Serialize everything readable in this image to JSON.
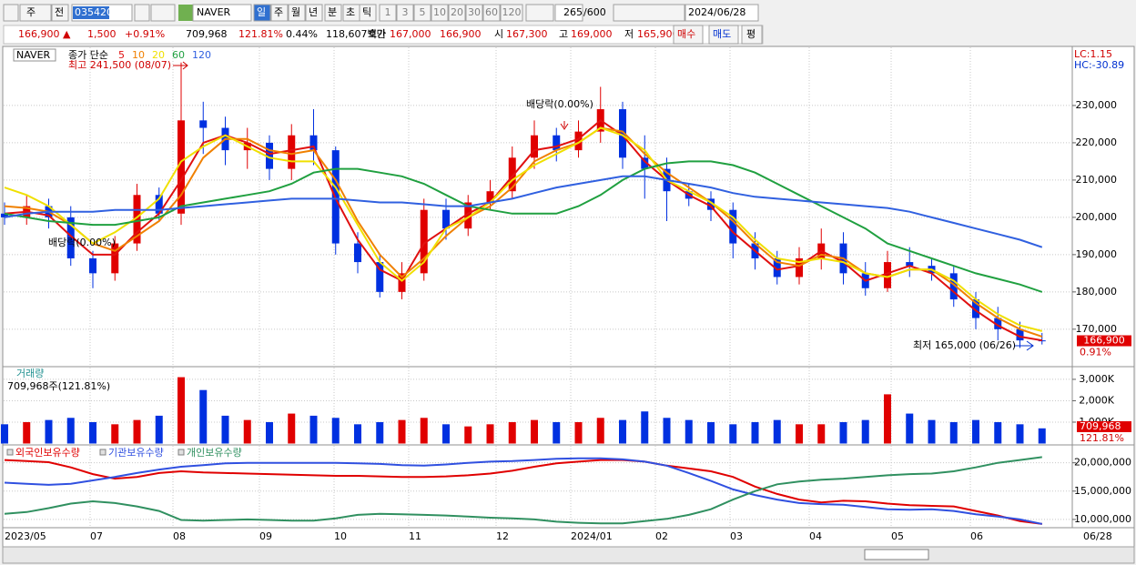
{
  "toolbar": {
    "period": "주",
    "compare": "전",
    "code": "035420",
    "name": "NAVER",
    "intervals": [
      "일",
      "주",
      "월",
      "년",
      "분",
      "초",
      "틱"
    ],
    "counts": [
      "1",
      "3",
      "5",
      "10",
      "20",
      "30",
      "60",
      "120"
    ],
    "bars": "265",
    "max_bars": "/600",
    "date": "2024/06/28"
  },
  "quote": {
    "price": "166,900 ▲",
    "change": "1,500",
    "rate": "+0.91%",
    "volume": "709,968",
    "volume_ratio": "121.81%",
    "turnover": "0.44%",
    "amount": "118,607백만",
    "bid_label": "호가",
    "ask": "167,000",
    "bid": "166,900",
    "open_label": "시",
    "open": "167,300",
    "high_label": "고",
    "high": "169,000",
    "low_label": "저",
    "low": "165,900",
    "buy": "매수",
    "sell": "매도",
    "eval": "평"
  },
  "chart_data": [
    {
      "type": "candlestick",
      "name": "NAVER",
      "ma_label": "종가 단순",
      "up_color": "#e00000",
      "down_color": "#0030e0",
      "x_labels": [
        "2023/05",
        "07",
        "08",
        "09",
        "10",
        "11",
        "12",
        "2024/01",
        "02",
        "03",
        "04",
        "05",
        "06",
        "06/28"
      ],
      "open": [
        201000,
        200000,
        203000,
        200000,
        189000,
        185000,
        193000,
        206000,
        201000,
        226000,
        224000,
        218000,
        220000,
        213000,
        222000,
        218000,
        193000,
        188000,
        180000,
        185000,
        202000,
        197000,
        204000,
        207000,
        216000,
        222000,
        218000,
        223000,
        229000,
        216000,
        213000,
        207000,
        205000,
        202000,
        193000,
        189000,
        184000,
        189000,
        193000,
        185000,
        181000,
        188000,
        187000,
        185000,
        178000,
        173000,
        170000,
        167000
      ],
      "high": [
        204000,
        206000,
        205000,
        203000,
        191000,
        195000,
        209000,
        208000,
        241500,
        231000,
        227000,
        224000,
        222000,
        225000,
        229000,
        219000,
        196000,
        190000,
        188000,
        205000,
        205000,
        206000,
        210000,
        219000,
        226000,
        224000,
        226000,
        235000,
        231000,
        222000,
        216000,
        209000,
        207000,
        204000,
        196000,
        191000,
        192000,
        197000,
        196000,
        188000,
        191000,
        192000,
        189000,
        187000,
        180000,
        176000,
        172000,
        169000
      ],
      "low": [
        198000,
        198000,
        197000,
        187000,
        181000,
        183000,
        191000,
        199000,
        198000,
        217000,
        214000,
        213000,
        210000,
        210000,
        214000,
        190000,
        185000,
        178500,
        178000,
        183000,
        194000,
        195000,
        202000,
        205000,
        213000,
        215000,
        216000,
        220000,
        213000,
        205000,
        199000,
        203000,
        199000,
        189000,
        186000,
        182000,
        182000,
        186000,
        182000,
        179000,
        180000,
        184000,
        183000,
        176000,
        170000,
        167000,
        165000,
        165900
      ],
      "close": [
        200000,
        203000,
        200000,
        189000,
        185000,
        193000,
        206000,
        201000,
        226000,
        224000,
        218000,
        220000,
        213000,
        222000,
        218000,
        193000,
        188000,
        180000,
        185000,
        202000,
        197000,
        204000,
        207000,
        216000,
        222000,
        218000,
        223000,
        229000,
        216000,
        213000,
        207000,
        205000,
        202000,
        193000,
        189000,
        184000,
        189000,
        193000,
        185000,
        181000,
        188000,
        187000,
        185000,
        178000,
        173000,
        170000,
        167000,
        166900
      ],
      "series": [
        {
          "name": "5",
          "color": "#e01010",
          "values": [
            201000,
            201500,
            200500,
            195000,
            190000,
            190000,
            196000,
            201000,
            210000,
            220000,
            222000,
            220000,
            217000,
            218000,
            219000,
            205000,
            194000,
            186000,
            183000,
            193000,
            197000,
            201000,
            204000,
            211000,
            218000,
            219000,
            221000,
            226000,
            222000,
            215000,
            210000,
            206000,
            203000,
            196000,
            191000,
            186000,
            187000,
            191000,
            188000,
            183000,
            185000,
            187000,
            185000,
            180000,
            175000,
            171000,
            168000,
            167000
          ]
        },
        {
          "name": "10",
          "color": "#f08000",
          "values": [
            203000,
            202500,
            201500,
            198000,
            193000,
            191000,
            195000,
            199000,
            206000,
            216000,
            221000,
            221000,
            218000,
            217000,
            218000,
            210000,
            199000,
            190000,
            184000,
            189000,
            195000,
            200000,
            203000,
            208000,
            215000,
            218000,
            220000,
            224000,
            223000,
            217000,
            212000,
            208000,
            204000,
            199000,
            193000,
            188000,
            187000,
            190000,
            189000,
            185000,
            184000,
            186000,
            186000,
            182000,
            177000,
            173000,
            170000,
            168000
          ]
        },
        {
          "name": "20",
          "color": "#f0e000",
          "values": [
            208000,
            206000,
            203000,
            198000,
            193000,
            196000,
            200000,
            205000,
            215000,
            219000,
            222000,
            219000,
            216000,
            215000,
            215000,
            208000,
            198000,
            188000,
            183000,
            188000,
            197000,
            200000,
            204000,
            210000,
            214000,
            217000,
            220000,
            224000,
            222000,
            218000,
            210000,
            207000,
            204000,
            200000,
            194000,
            189000,
            188000,
            189000,
            188000,
            185000,
            184000,
            186000,
            186000,
            183000,
            178000,
            174000,
            171000,
            169500
          ]
        },
        {
          "name": "60",
          "color": "#20a040",
          "values": [
            201000,
            200000,
            199000,
            198500,
            198000,
            198000,
            199000,
            200000,
            203000,
            204000,
            205000,
            206000,
            207000,
            209000,
            212000,
            213000,
            213000,
            212000,
            211000,
            209000,
            206000,
            203000,
            202000,
            201000,
            201000,
            201000,
            203000,
            206000,
            210000,
            213000,
            214500,
            215000,
            215000,
            214000,
            212000,
            209000,
            206000,
            203000,
            200000,
            197000,
            193000,
            191000,
            189000,
            187000,
            185000,
            183500,
            182000,
            180000
          ]
        },
        {
          "name": "120",
          "color": "#3060e0",
          "values": [
            200000,
            201000,
            201500,
            201500,
            201500,
            202000,
            202000,
            202000,
            202500,
            203000,
            203500,
            204000,
            204500,
            205000,
            205000,
            205000,
            204500,
            204000,
            204000,
            203500,
            203000,
            203000,
            204000,
            205000,
            206500,
            208000,
            209000,
            210000,
            211000,
            211000,
            210000,
            209000,
            208000,
            206500,
            205500,
            205000,
            204500,
            204000,
            203500,
            203000,
            202500,
            201500,
            200000,
            198500,
            197000,
            195500,
            194000,
            192000
          ]
        }
      ],
      "ylim": [
        160200,
        245600
      ],
      "yticks": [
        {
          "value": 170000,
          "label": "170,000"
        },
        {
          "value": 180000,
          "label": "180,000"
        },
        {
          "value": 190000,
          "label": "190,000"
        },
        {
          "value": 200000,
          "label": "200,000"
        },
        {
          "value": 210000,
          "label": "210,000"
        },
        {
          "value": 220000,
          "label": "220,000"
        },
        {
          "value": 230000,
          "label": "230,000"
        }
      ],
      "annotations": [
        "최고 241,500 (08/07)",
        "배당락(0.00%)",
        "배당락(0.00%)",
        "최저 165,000 (06/26)"
      ],
      "lc_label": "LC:1.15",
      "hc_label": "HC:-30.89",
      "last_label": "166,900",
      "last_rate": "0.91%"
    },
    {
      "type": "bar",
      "title": "거래량",
      "subtitle": "709,968주(121.81%)",
      "values": [
        900,
        1000,
        1100,
        1200,
        1000,
        900,
        1100,
        1300,
        3100,
        2500,
        1300,
        1100,
        1000,
        1400,
        1300,
        1200,
        900,
        1000,
        1100,
        1200,
        900,
        800,
        900,
        1000,
        1100,
        1000,
        1000,
        1200,
        1100,
        1500,
        1200,
        1100,
        1000,
        900,
        1000,
        1100,
        900,
        900,
        1000,
        1100,
        2300,
        1400,
        1100,
        1000,
        1100,
        1000,
        900,
        710
      ],
      "ylim": [
        0,
        3550
      ],
      "yticks": [
        {
          "value": 1000,
          "label": "1,000K"
        },
        {
          "value": 2000,
          "label": "2,000K"
        },
        {
          "value": 3000,
          "label": "3,000K"
        }
      ],
      "last_label": "709,968",
      "last_rate": "121.81%"
    },
    {
      "type": "line",
      "series": [
        {
          "name": "외국인보유수량",
          "color": "#e00000",
          "values": [
            20500000,
            20300000,
            20100000,
            19200000,
            18000000,
            17200000,
            17500000,
            18200000,
            18500000,
            18300000,
            18200000,
            18100000,
            18000000,
            17900000,
            17800000,
            17700000,
            17700000,
            17600000,
            17500000,
            17500000,
            17600000,
            17800000,
            18100000,
            18600000,
            19300000,
            19900000,
            20200000,
            20500000,
            20500000,
            20200000,
            19500000,
            19000000,
            18500000,
            17500000,
            15800000,
            14500000,
            13500000,
            13000000,
            13300000,
            13200000,
            12800000,
            12500000,
            12400000,
            12300000,
            11500000,
            10700000,
            9700000,
            9200000
          ]
        },
        {
          "name": "기관보유수량",
          "color": "#3050e0",
          "values": [
            16500000,
            16300000,
            16100000,
            16300000,
            16900000,
            17500000,
            18200000,
            18800000,
            19300000,
            19600000,
            19900000,
            20000000,
            20000000,
            20000000,
            20000000,
            20000000,
            19900000,
            19800000,
            19600000,
            19500000,
            19700000,
            20000000,
            20200000,
            20300000,
            20500000,
            20700000,
            20800000,
            20800000,
            20600000,
            20200000,
            19500000,
            18200000,
            16800000,
            15300000,
            14300000,
            13500000,
            12900000,
            12700000,
            12600000,
            12200000,
            11800000,
            11700000,
            11800000,
            11500000,
            10900000,
            10500000,
            10000000,
            9200000
          ]
        },
        {
          "name": "개인보유수량",
          "color": "#309060",
          "values": [
            11000000,
            11300000,
            12000000,
            12800000,
            13200000,
            12900000,
            12300000,
            11500000,
            9900000,
            9800000,
            9900000,
            10000000,
            9900000,
            9800000,
            9800000,
            10200000,
            10800000,
            11000000,
            10900000,
            10800000,
            10700000,
            10500000,
            10300000,
            10200000,
            10000000,
            9600000,
            9400000,
            9300000,
            9300000,
            9700000,
            10100000,
            10800000,
            11800000,
            13500000,
            15000000,
            16200000,
            16700000,
            17000000,
            17200000,
            17500000,
            17800000,
            18000000,
            18100000,
            18500000,
            19200000,
            20000000,
            20500000,
            21000000
          ]
        }
      ],
      "ylim": [
        8700000,
        23000000
      ],
      "yticks": [
        {
          "value": 10000000,
          "label": "10,000,000"
        },
        {
          "value": 15000000,
          "label": "15,000,000"
        },
        {
          "value": 20000000,
          "label": "20,000,000"
        }
      ]
    }
  ]
}
